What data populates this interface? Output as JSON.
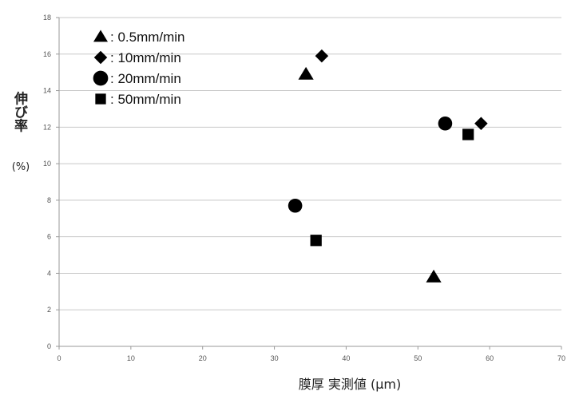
{
  "chart_data": {
    "type": "scatter",
    "title": "",
    "xlabel": "膜厚 実測値 (µm)",
    "ylabel_main": "伸び率",
    "ylabel_unit": "(%)",
    "xlim": [
      0,
      70
    ],
    "ylim": [
      0,
      18
    ],
    "xticks": [
      0,
      10,
      20,
      30,
      40,
      50,
      60,
      70
    ],
    "yticks": [
      0,
      2,
      4,
      6,
      8,
      10,
      12,
      14,
      16,
      18
    ],
    "grid": "horizontal",
    "legend_position": "top-left",
    "series": [
      {
        "name": ": 0.5mm/min",
        "marker": "triangle",
        "points": [
          {
            "x": 34.4,
            "y": 14.9
          },
          {
            "x": 52.2,
            "y": 3.8
          }
        ]
      },
      {
        "name": ": 10mm/min",
        "marker": "diamond",
        "points": [
          {
            "x": 36.6,
            "y": 15.9
          },
          {
            "x": 58.8,
            "y": 12.2
          }
        ]
      },
      {
        "name": ": 20mm/min",
        "marker": "circle",
        "points": [
          {
            "x": 32.9,
            "y": 7.7
          },
          {
            "x": 53.8,
            "y": 12.2
          }
        ]
      },
      {
        "name": ": 50mm/min",
        "marker": "square",
        "points": [
          {
            "x": 35.8,
            "y": 5.8
          },
          {
            "x": 57.0,
            "y": 11.6
          }
        ]
      }
    ]
  }
}
